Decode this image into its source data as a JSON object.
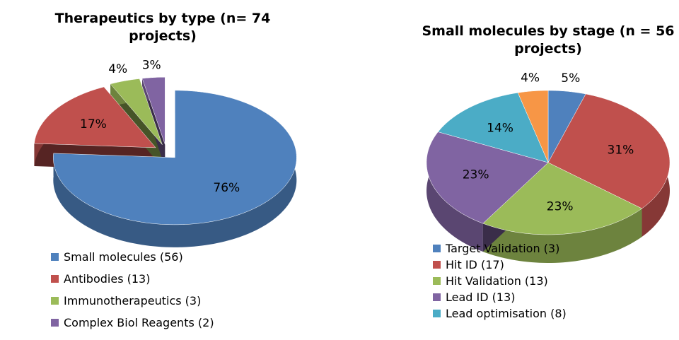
{
  "chart_data": [
    {
      "type": "pie",
      "title": "Therapeutics by type (n= 74 projects)",
      "categories": [
        "Small molecules (56)",
        "Antibodies (13)",
        "Immunotherapeutics (3)",
        "Complex Biol Reagents (2)"
      ],
      "values": [
        76,
        17,
        4,
        3
      ],
      "value_labels": [
        "76%",
        "17%",
        "4%",
        "3%"
      ],
      "colors": [
        "#4f81bd",
        "#c0504d",
        "#9bbb59",
        "#8064a2"
      ],
      "exploded": true,
      "three_d": true
    },
    {
      "type": "pie",
      "title": "Small molecules by stage (n = 56 projects)",
      "categories": [
        "Target Validation (3)",
        "Hit ID (17)",
        "Hit Validation (13)",
        "Lead ID (13)",
        "Lead optimisation (8)",
        null
      ],
      "values": [
        5,
        31,
        23,
        23,
        14,
        4
      ],
      "value_labels": [
        "5%",
        "31%",
        "23%",
        "23%",
        "14%",
        "4%"
      ],
      "colors": [
        "#4f81bd",
        "#c0504d",
        "#9bbb59",
        "#8064a2",
        "#4bacc6",
        "#f79646"
      ],
      "exploded": false,
      "three_d": true
    }
  ]
}
